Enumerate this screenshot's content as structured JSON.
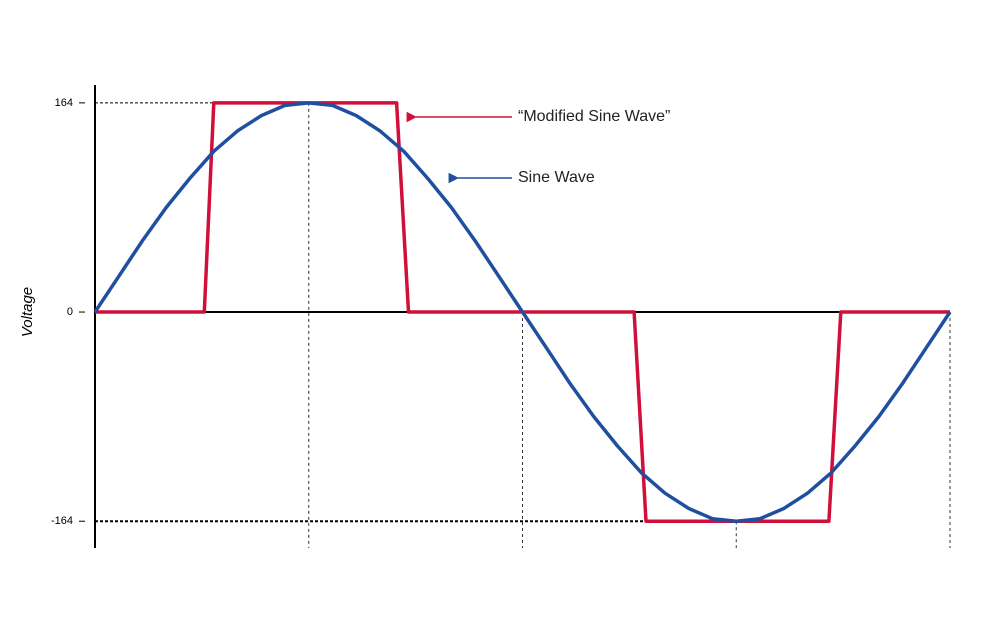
{
  "chart_data": {
    "type": "line",
    "y_label": "Voltage",
    "xlim": [
      0,
      360
    ],
    "xticks": [
      90,
      180,
      270,
      360
    ],
    "ylim": [
      -185,
      178
    ],
    "yticks": [
      164,
      0,
      -164
    ],
    "series": [
      {
        "name": "“Modified Sine Wave”",
        "color": "#d0103a",
        "x": [
          0,
          46,
          50,
          127,
          132,
          227,
          232,
          309,
          314,
          360
        ],
        "values": [
          0,
          0,
          164,
          164,
          0,
          0,
          -164,
          -164,
          0,
          0
        ]
      },
      {
        "name": "Sine Wave",
        "color": "#1f4f9e",
        "x": [
          0,
          10,
          20,
          30,
          40,
          50,
          60,
          70,
          80,
          90,
          100,
          110,
          120,
          130,
          140,
          150,
          160,
          170,
          180,
          190,
          200,
          210,
          220,
          230,
          240,
          250,
          260,
          270,
          280,
          290,
          300,
          310,
          320,
          330,
          340,
          350,
          360
        ],
        "values": [
          0,
          28,
          56,
          82,
          105,
          126,
          142,
          154,
          162,
          164,
          162,
          154,
          142,
          126,
          105,
          82,
          56,
          28,
          0,
          -28,
          -56,
          -82,
          -105,
          -126,
          -142,
          -154,
          -162,
          -164,
          -162,
          -154,
          -142,
          -126,
          -105,
          -82,
          -56,
          -28,
          0
        ]
      }
    ]
  }
}
